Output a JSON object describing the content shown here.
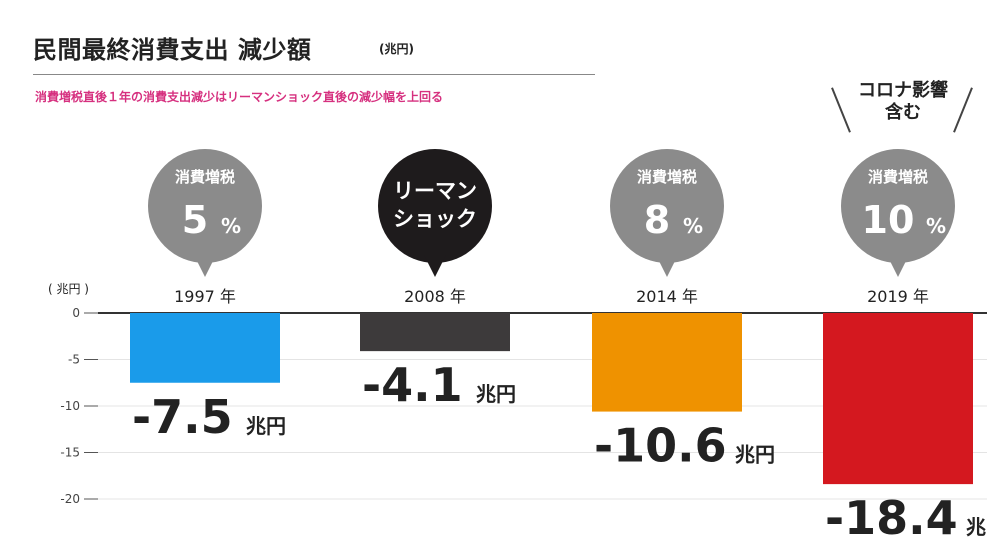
{
  "header": {
    "title": "民間最終消費支出 減少額",
    "title_unit": "(兆円)",
    "subtitle": "消費増税直後１年の消費支出減少はリーマンショック直後の減少幅を上回る",
    "subtitle_color": "#d6307f"
  },
  "unit_label": "( 兆円 )",
  "corona_note": {
    "line1": "コロナ影響",
    "line2": "含む"
  },
  "value_unit": "兆円",
  "chart_data": {
    "type": "bar",
    "title": "民間最終消費支出 減少額",
    "ylabel": "( 兆円 )",
    "ylim": [
      -20,
      0
    ],
    "yticks": [
      0,
      -5,
      -10,
      -15,
      -20
    ],
    "grid": true,
    "categories": [
      "1997 年",
      "2008 年",
      "2014 年",
      "2019 年"
    ],
    "values": [
      -7.5,
      -4.1,
      -10.6,
      -18.4
    ],
    "value_labels": [
      "-7.5",
      "-4.1",
      "-10.6",
      "-18.4"
    ],
    "colors": [
      "#1a9bea",
      "#3d3a3b",
      "#ef9200",
      "#d4181f"
    ],
    "bubbles": [
      {
        "small": "消費増税",
        "big": "5",
        "pct": "%",
        "dark": false
      },
      {
        "line1": "リーマン",
        "line2": "ショック",
        "dark": true
      },
      {
        "small": "消費増税",
        "big": "8",
        "pct": "%",
        "dark": false
      },
      {
        "small": "消費増税",
        "big": "10",
        "pct": "%",
        "dark": false
      }
    ],
    "bubble_colors": {
      "light": "#8b8b8b",
      "dark": "#1e1b1c"
    }
  }
}
